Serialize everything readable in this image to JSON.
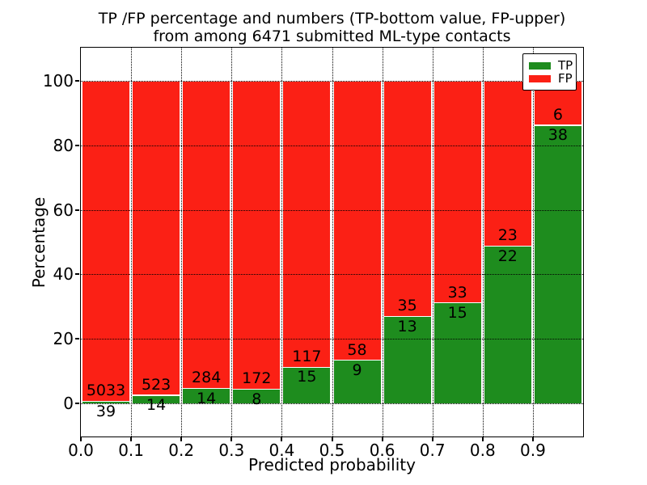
{
  "title": {
    "line1": "TP /FP percentage and numbers (TP-bottom value, FP-upper)",
    "line2": "from among 6471 submitted ML-type contacts"
  },
  "chart_data": {
    "type": "bar",
    "stacked": true,
    "normalized_to_percent": true,
    "title": "TP /FP percentage and numbers (TP-bottom value, FP-upper) from among 6471 submitted ML-type contacts",
    "xlabel": "Predicted probability",
    "ylabel": "Percentage",
    "total_contacts": 6471,
    "bin_starts": [
      0.0,
      0.1,
      0.2,
      0.3,
      0.4,
      0.5,
      0.6,
      0.7,
      0.8,
      0.9
    ],
    "bin_width": 0.1,
    "categories": [
      "0.0-0.1",
      "0.1-0.2",
      "0.2-0.3",
      "0.3-0.4",
      "0.4-0.5",
      "0.5-0.6",
      "0.6-0.7",
      "0.7-0.8",
      "0.8-0.9",
      "0.9-1.0"
    ],
    "series": [
      {
        "name": "TP",
        "color": "#1e8c1e",
        "counts": [
          39,
          14,
          14,
          8,
          15,
          9,
          13,
          15,
          22,
          38
        ]
      },
      {
        "name": "FP",
        "color": "#fb2015",
        "counts": [
          5033,
          523,
          284,
          172,
          117,
          58,
          35,
          33,
          23,
          6
        ]
      }
    ],
    "tp_percent_of_bin": [
      0.77,
      2.61,
      4.7,
      4.44,
      11.36,
      13.43,
      27.08,
      31.25,
      48.89,
      86.36
    ],
    "xticks": [
      "0.0",
      "0.1",
      "0.2",
      "0.3",
      "0.4",
      "0.5",
      "0.6",
      "0.7",
      "0.8",
      "0.9"
    ],
    "yticks": [
      "0",
      "20",
      "40",
      "60",
      "80",
      "100"
    ],
    "xlim": [
      0.0,
      1.0
    ],
    "ylim": [
      -10.3,
      110.3
    ],
    "grid": "dotted, drawn above bars",
    "legend": {
      "position": "upper right"
    },
    "bar_edge_color": "#ffffff"
  }
}
